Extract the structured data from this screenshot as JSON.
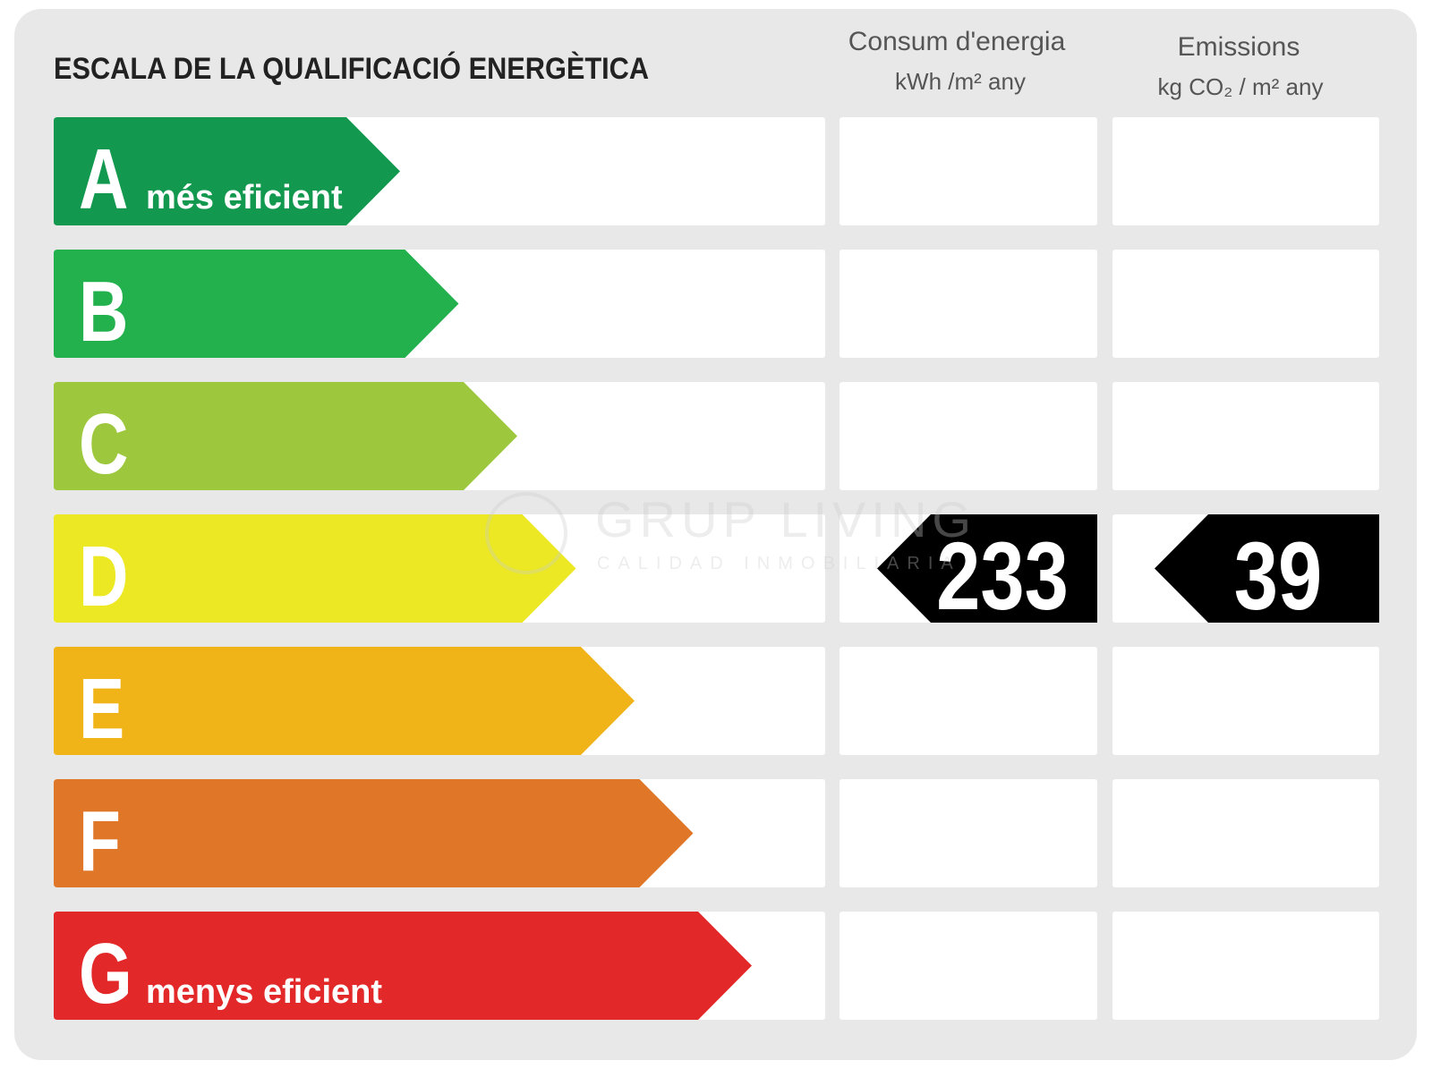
{
  "header": {
    "title": "ESCALA DE LA QUALIFICACIÓ ENERGÈTICA"
  },
  "columns": [
    {
      "title": "Consum d'energia",
      "unit": "kWh /m² any"
    },
    {
      "title": "Emissions",
      "unit": "kg CO₂ / m² any"
    }
  ],
  "watermark": {
    "brand": "GRUP LIVING",
    "tagline": "CALIDAD INMOBILIARIA"
  },
  "rows": [
    {
      "letter": "A",
      "note": "més eficient",
      "color": "#13994f"
    },
    {
      "letter": "B",
      "color": "#22b14c"
    },
    {
      "letter": "C",
      "color": "#9dc73c"
    },
    {
      "letter": "D",
      "color": "#ece823",
      "consumption": 233,
      "emissions": 39
    },
    {
      "letter": "E",
      "color": "#f0b419"
    },
    {
      "letter": "F",
      "color": "#e07628"
    },
    {
      "letter": "G",
      "note": "menys eficient",
      "color": "#e3282a"
    }
  ]
}
